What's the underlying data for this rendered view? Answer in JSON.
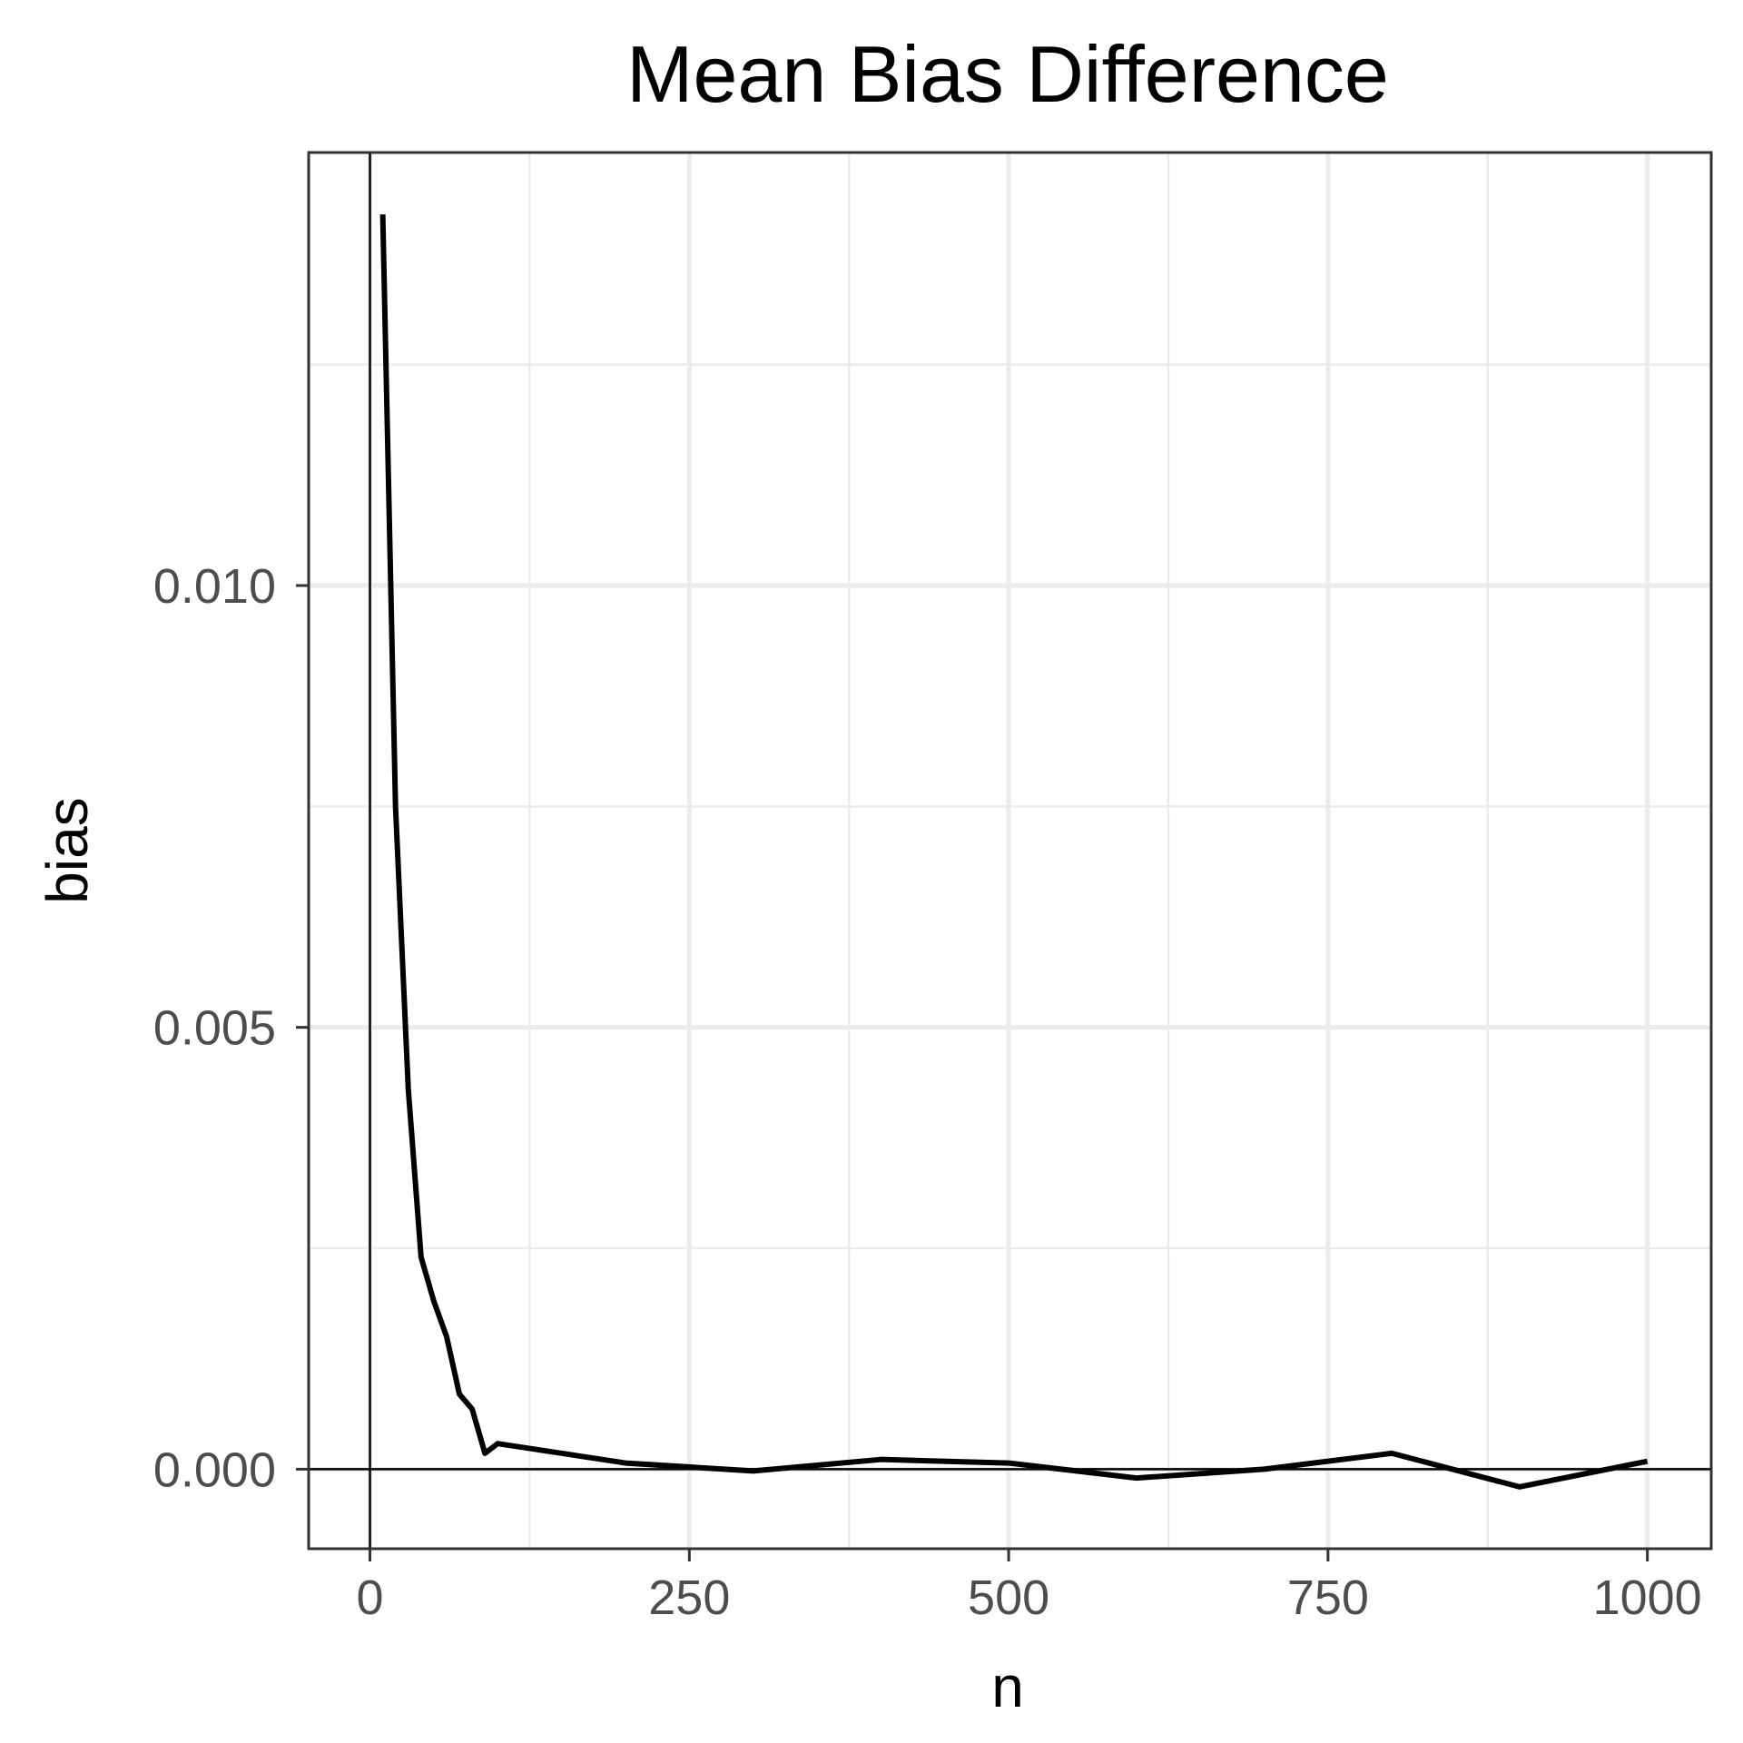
{
  "chart_data": {
    "type": "line",
    "title": "Mean Bias Difference",
    "xlabel": "n",
    "ylabel": "bias",
    "xlim": [
      -48,
      1050
    ],
    "ylim": [
      -0.0009,
      0.0149
    ],
    "xticks": [
      0,
      250,
      500,
      750,
      1000
    ],
    "xtick_labels": [
      "0",
      "250",
      "500",
      "750",
      "1000"
    ],
    "yticks": [
      0.0,
      0.005,
      0.01
    ],
    "ytick_labels": [
      "0.000",
      "0.005",
      "0.010"
    ],
    "grid": true,
    "reference_lines": {
      "x": 0,
      "y": 0
    },
    "series": [
      {
        "color": "#000000",
        "x": [
          10,
          20,
          30,
          40,
          50,
          60,
          70,
          80,
          90,
          100,
          200,
          300,
          400,
          500,
          600,
          700,
          800,
          900,
          1000
        ],
        "y": [
          0.0142,
          0.0075,
          0.0043,
          0.0024,
          0.0019,
          0.0015,
          0.00085,
          0.00068,
          0.00018,
          0.00029,
          7e-05,
          -2e-05,
          0.00011,
          7e-05,
          -0.0001,
          0.0,
          0.00018,
          -0.0002,
          9e-05
        ]
      }
    ]
  }
}
